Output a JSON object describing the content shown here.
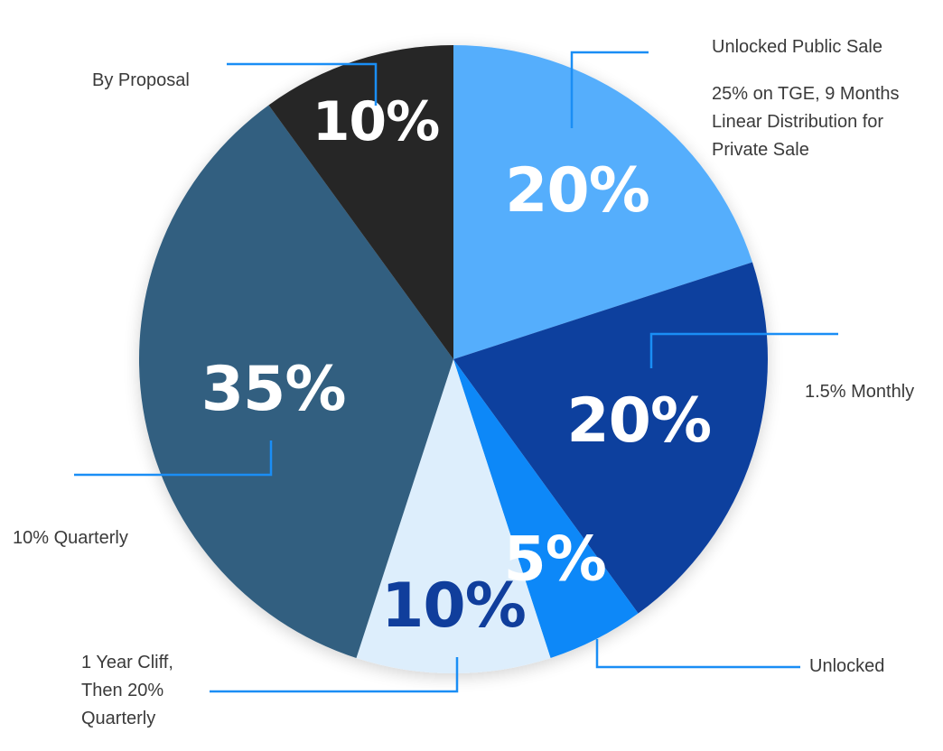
{
  "chart_data": {
    "type": "pie",
    "slices": [
      {
        "label": "20%",
        "value": 20,
        "color": "#55aefc",
        "text_color": "#ffffff"
      },
      {
        "label": "20%",
        "value": 20,
        "color": "#0f3f9e",
        "text_color": "#ffffff"
      },
      {
        "label": "5%",
        "value": 5,
        "color": "#0b88f8",
        "text_color": "#ffffff"
      },
      {
        "label": "10%",
        "value": 10,
        "color": "#ddeefc",
        "text_color": "#103e9c"
      },
      {
        "label": "35%",
        "value": 35,
        "color": "#315e80",
        "text_color": "#ffffff"
      },
      {
        "label": "10%",
        "value": 10,
        "color": "#282828",
        "text_color": "#ffffff"
      }
    ],
    "annotations": [
      {
        "slice": 0,
        "lines": [
          "Unlocked Public Sale"
        ]
      },
      {
        "slice": 0,
        "lines": [
          "25% on TGE, 9 Months",
          "Linear Distribution for",
          "Private Sale"
        ]
      },
      {
        "slice": 1,
        "lines": [
          "1.5% Monthly"
        ]
      },
      {
        "slice": 2,
        "lines": [
          "Unlocked"
        ]
      },
      {
        "slice": 3,
        "lines": [
          "1 Year Cliff,",
          "Then 20%",
          "Quarterly"
        ]
      },
      {
        "slice": 4,
        "lines": [
          "10% Quarterly"
        ]
      },
      {
        "slice": 5,
        "lines": [
          "By Proposal"
        ]
      }
    ],
    "leader_color": "#1a8ef5"
  }
}
